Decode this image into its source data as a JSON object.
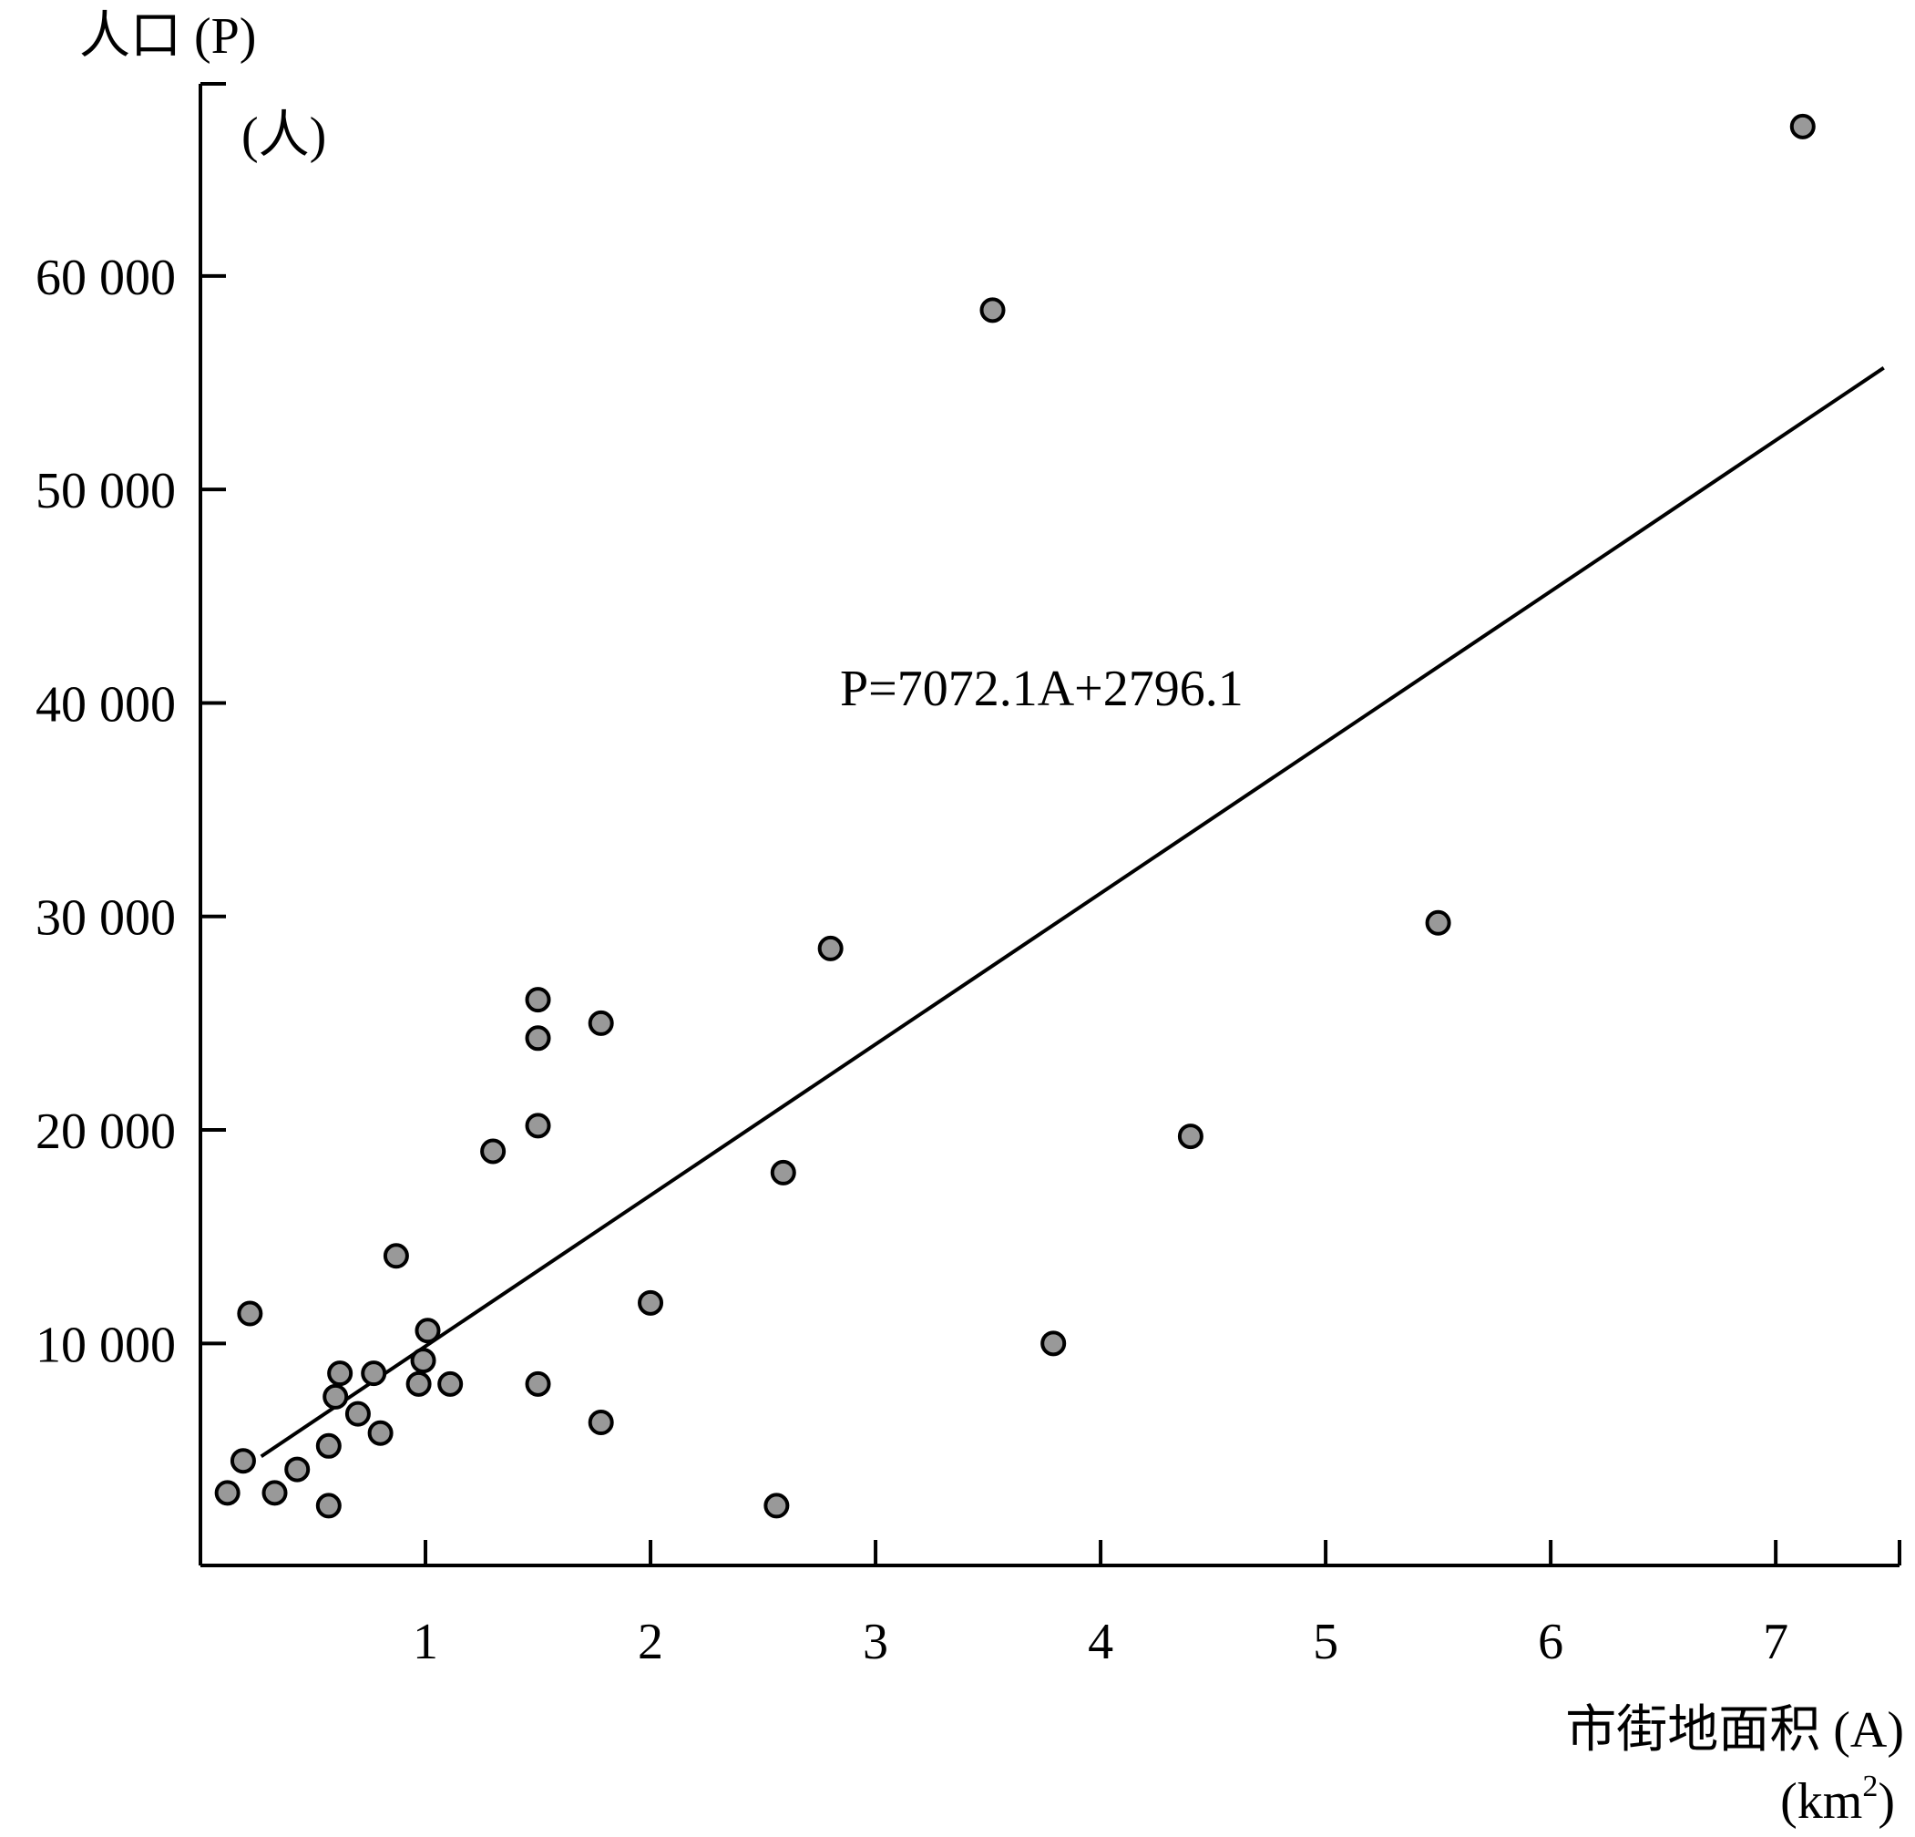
{
  "chart_data": {
    "type": "scatter",
    "title": "",
    "ylabel": "人口 (P)",
    "ylabel_unit": "(人)",
    "xlabel": "市街地面积 (A)",
    "xlabel_unit_base": "(km",
    "xlabel_unit_sup": "2",
    "xlabel_unit_close": ")",
    "x_ticks": [
      1,
      2,
      3,
      4,
      5,
      6,
      7
    ],
    "x_tick_labels": [
      "1",
      "2",
      "3",
      "4",
      "5",
      "6",
      "7"
    ],
    "y_ticks": [
      10000,
      20000,
      30000,
      40000,
      50000,
      60000
    ],
    "y_tick_labels": [
      "10 000",
      "20 000",
      "30 000",
      "40 000",
      "50 000",
      "60 000"
    ],
    "xlim": [
      0.0,
      7.55
    ],
    "ylim": [
      -400,
      69000
    ],
    "grid": false,
    "marker_color": "#999999",
    "line_color": "#000000",
    "points": [
      {
        "x": 0.12,
        "y": 3000
      },
      {
        "x": 0.19,
        "y": 4500
      },
      {
        "x": 0.22,
        "y": 11400
      },
      {
        "x": 0.33,
        "y": 3000
      },
      {
        "x": 0.43,
        "y": 4100
      },
      {
        "x": 0.57,
        "y": 5200
      },
      {
        "x": 0.57,
        "y": 2400
      },
      {
        "x": 0.6,
        "y": 7500
      },
      {
        "x": 0.62,
        "y": 8600
      },
      {
        "x": 0.7,
        "y": 6700
      },
      {
        "x": 0.77,
        "y": 8600
      },
      {
        "x": 0.8,
        "y": 5800
      },
      {
        "x": 0.87,
        "y": 14100
      },
      {
        "x": 0.97,
        "y": 8100
      },
      {
        "x": 0.99,
        "y": 9200
      },
      {
        "x": 1.01,
        "y": 10600
      },
      {
        "x": 1.11,
        "y": 8100
      },
      {
        "x": 1.3,
        "y": 19000
      },
      {
        "x": 1.5,
        "y": 26100
      },
      {
        "x": 1.5,
        "y": 24300
      },
      {
        "x": 1.5,
        "y": 20200
      },
      {
        "x": 1.5,
        "y": 8100
      },
      {
        "x": 1.78,
        "y": 25000
      },
      {
        "x": 1.78,
        "y": 6300
      },
      {
        "x": 2.0,
        "y": 11900
      },
      {
        "x": 2.56,
        "y": 2400
      },
      {
        "x": 2.59,
        "y": 18000
      },
      {
        "x": 2.8,
        "y": 28500
      },
      {
        "x": 3.52,
        "y": 58400
      },
      {
        "x": 3.79,
        "y": 10000
      },
      {
        "x": 4.4,
        "y": 19700
      },
      {
        "x": 5.5,
        "y": 29700
      },
      {
        "x": 7.12,
        "y": 67000
      }
    ],
    "regression": {
      "equation_label": "P=7072.1A+2796.1",
      "slope": 7072.1,
      "intercept": 2796.1,
      "x_start": 0.27,
      "x_end": 7.48
    }
  }
}
